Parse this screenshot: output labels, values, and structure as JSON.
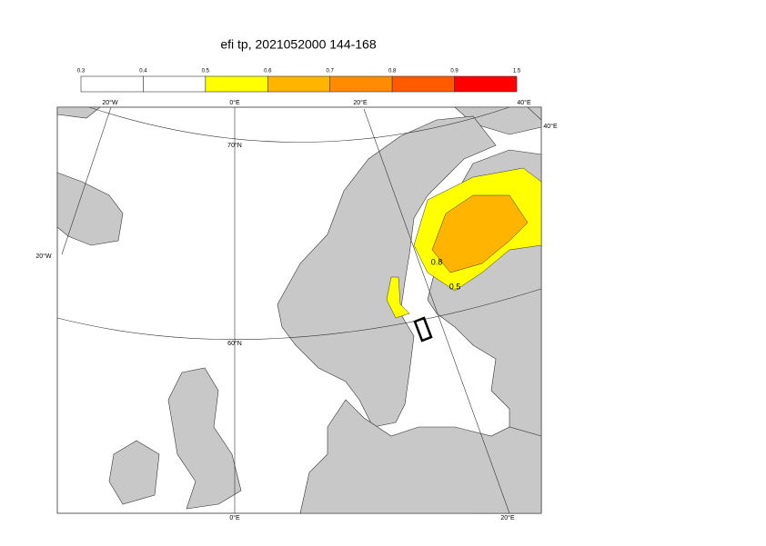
{
  "title": "efi tp, 2021052000 144-168",
  "colorbar": {
    "levels": [
      0.3,
      0.4,
      0.5,
      0.6,
      0.7,
      0.8,
      0.9,
      1.5
    ],
    "colors": [
      "#ffffff",
      "#ffffff",
      "#ffff00",
      "#ffb400",
      "#ff8c00",
      "#ff5a00",
      "#ff0000"
    ]
  },
  "graticule_labels": [
    "20°W",
    "0°E",
    "20°E",
    "40°E",
    "40°E",
    "20°W",
    "70°N",
    "60°N",
    "0°E",
    "20°E"
  ],
  "contour_labels": [
    "0.8",
    "0.5"
  ]
}
